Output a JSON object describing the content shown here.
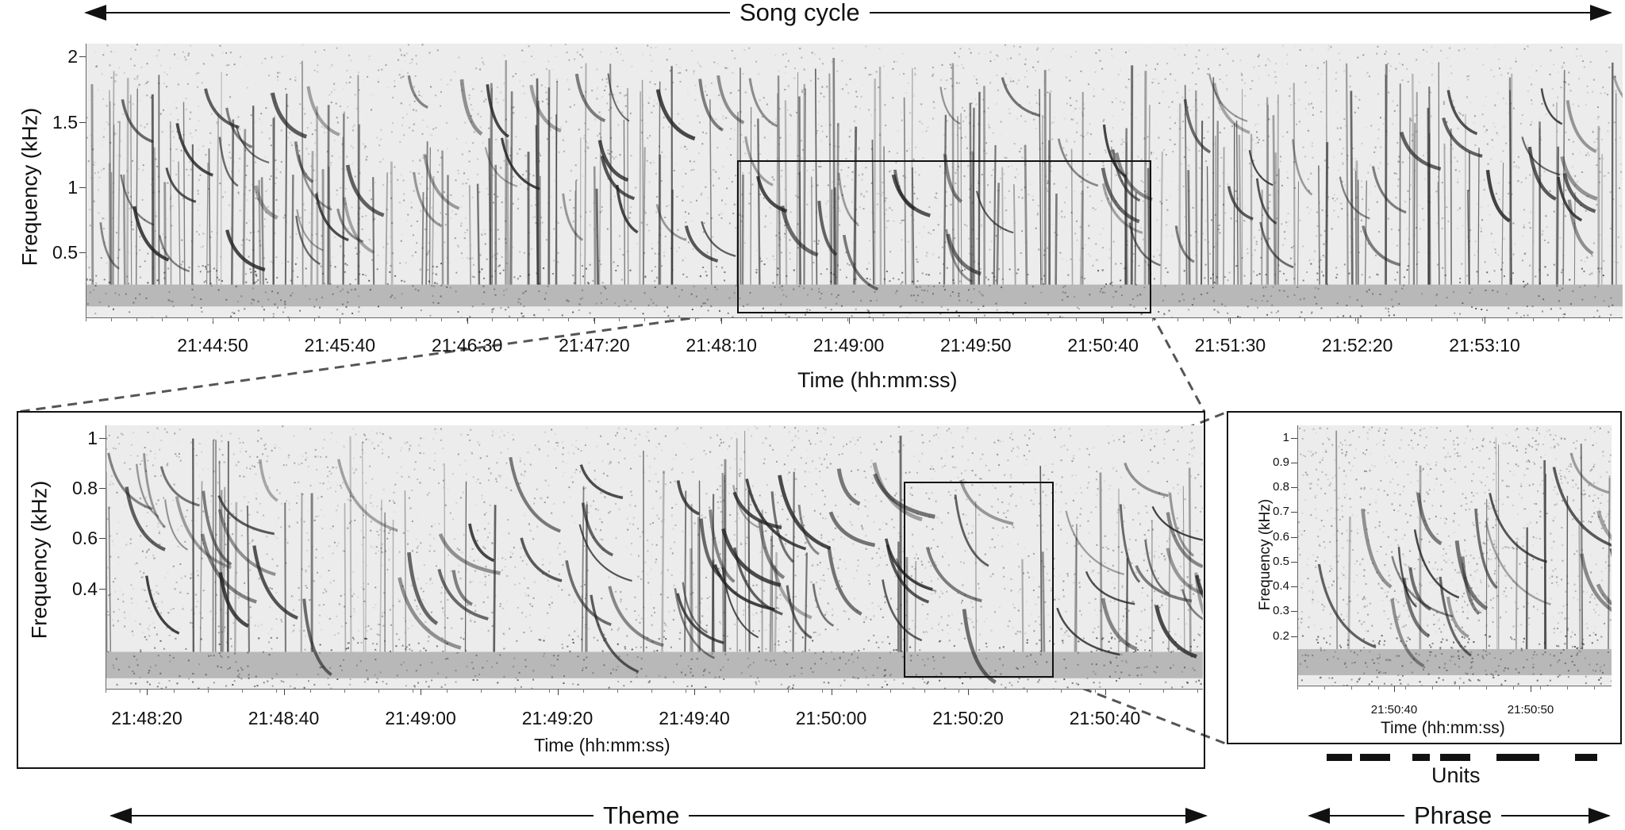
{
  "top_label": "Song cycle",
  "bottom_label_theme": "Theme",
  "bottom_label_phrase": "Phrase",
  "units_label": "Units",
  "colors": {
    "ink": "#111111",
    "background": "#ffffff",
    "spectrogram_bg": "#e9e9e9"
  },
  "chart_data": [
    {
      "type": "heatmap",
      "name": "Song cycle spectrogram",
      "xlabel": "Time (hh:mm:ss)",
      "ylabel": "Frequency (kHz)",
      "x_ticks": [
        "21:44:50",
        "21:45:40",
        "21:46:30",
        "21:47:20",
        "21:48:10",
        "21:49:00",
        "21:49:50",
        "21:50:40",
        "21:51:30",
        "21:52:20",
        "21:53:10"
      ],
      "y_ticks": [
        "2",
        "1.5",
        "1",
        "0.5"
      ],
      "ylim": [
        0,
        2.1
      ],
      "zoom_box": {
        "time_start": "21:48:10",
        "time_end": "21:50:40",
        "freq_low": 0.05,
        "freq_high": 1.2
      }
    },
    {
      "type": "heatmap",
      "name": "Theme spectrogram",
      "xlabel": "Time (hh:mm:ss)",
      "ylabel": "Frequency (kHz)",
      "x_ticks": [
        "21:48:20",
        "21:48:40",
        "21:49:00",
        "21:49:20",
        "21:49:40",
        "21:50:00",
        "21:50:20",
        "21:50:40"
      ],
      "y_ticks": [
        "1",
        "0.8",
        "0.6",
        "0.4"
      ],
      "ylim": [
        0,
        1.05
      ],
      "zoom_box": {
        "time_start": "21:50:12",
        "time_end": "21:50:32",
        "freq_low": 0.05,
        "freq_high": 0.85
      }
    },
    {
      "type": "heatmap",
      "name": "Phrase spectrogram",
      "xlabel": "Time (hh:mm:ss)",
      "ylabel": "Frequency (kHz)",
      "x_ticks": [
        "21:50:40",
        "21:50:50"
      ],
      "y_ticks": [
        "1",
        "0.9",
        "0.8",
        "0.7",
        "0.6",
        "0.5",
        "0.4",
        "0.3",
        "0.2"
      ],
      "ylim": [
        0,
        1.05
      ]
    }
  ]
}
